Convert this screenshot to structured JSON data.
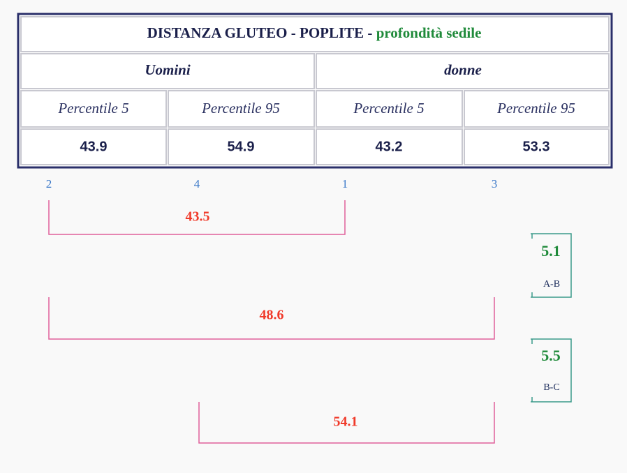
{
  "table": {
    "title": "DISTANZA GLUTEO - POPLITE -",
    "subtitle": "profondità sedile",
    "groups": [
      "Uomini",
      "donne"
    ],
    "headers": [
      "Percentile 5",
      "Percentile 95",
      "Percentile 5",
      "Percentile 95"
    ],
    "values": [
      "43.9",
      "54.9",
      "43.2",
      "53.3"
    ]
  },
  "markers": [
    "2",
    "4",
    "1",
    "3"
  ],
  "ranges": [
    "43.5",
    "48.6",
    "54.1"
  ],
  "differences": [
    {
      "value": "5.1",
      "label": "A-B"
    },
    {
      "value": "5.5",
      "label": "B-C"
    }
  ]
}
